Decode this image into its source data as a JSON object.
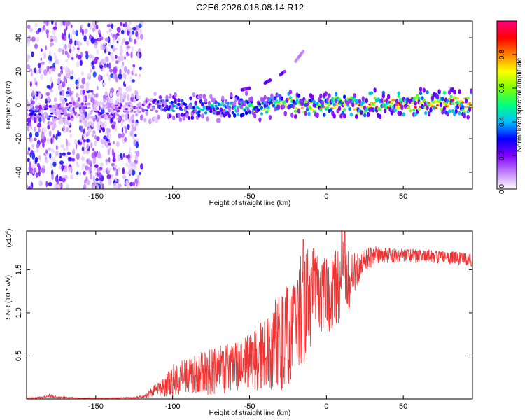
{
  "chart_data": [
    {
      "type": "heatmap",
      "title": "C2E6.2026.018.08.14.R12",
      "xlabel": "Height of straight line (km)",
      "ylabel": "Frequency (Hz)",
      "xlim": [
        -195,
        95
      ],
      "ylim": [
        -50,
        50
      ],
      "xticks": [
        -150,
        -100,
        -50,
        0,
        50
      ],
      "yticks": [
        -40,
        -20,
        0,
        20,
        40
      ],
      "xtick_labels": [
        "-150",
        "-100",
        "-50",
        "0",
        "50"
      ],
      "ytick_labels": [
        "-40",
        "-20",
        "0",
        "20",
        "40"
      ],
      "colorbar": {
        "label": "Normalized spectral amplitude",
        "range": [
          0.0,
          1.0
        ],
        "ticks": [
          0.0,
          0.2,
          0.4,
          0.6,
          0.8
        ],
        "tick_labels": [
          "0.0",
          "0.2",
          "0.4",
          "0.6",
          "0.8"
        ],
        "colors": [
          "#ffffff",
          "#c080ff",
          "#8000ff",
          "#0000ff",
          "#00c0ff",
          "#00ff80",
          "#80ff00",
          "#ffff00",
          "#ff8000",
          "#ff0000",
          "#ff0080"
        ]
      },
      "noise_region_x": [
        -195,
        -120
      ],
      "trace": {
        "x": [
          -193,
          -185,
          -175,
          -165,
          -150,
          -135,
          -120,
          -110,
          -100,
          -90,
          -80,
          -70,
          -60,
          -50,
          -45,
          -40,
          -35,
          -30,
          -25,
          -20,
          -15,
          -10,
          0,
          10,
          20,
          30,
          40,
          50,
          60,
          70,
          80,
          95
        ],
        "y": [
          -5,
          -4,
          -5,
          -4,
          -4,
          -4,
          -3,
          0,
          -1,
          -2,
          0,
          -1,
          -2,
          0,
          -1,
          -1,
          0,
          3,
          1,
          1,
          -2,
          -1,
          0,
          0,
          0,
          1,
          1,
          1,
          1,
          1,
          1,
          1
        ],
        "amplitude": [
          0.35,
          0.4,
          0.3,
          0.3,
          0.25,
          0.25,
          0.3,
          0.45,
          0.5,
          0.5,
          0.55,
          0.5,
          0.6,
          0.65,
          0.7,
          0.7,
          0.7,
          0.75,
          0.8,
          0.85,
          0.85,
          0.8,
          0.85,
          0.85,
          0.9,
          0.95,
          0.95,
          0.97,
          0.97,
          0.97,
          0.97,
          0.97
        ]
      },
      "side_features": [
        {
          "x": [
            -55,
            -50
          ],
          "y": [
            9,
            10
          ],
          "amplitude": 0.2
        },
        {
          "x": [
            -40,
            -36
          ],
          "y": [
            13,
            15
          ],
          "amplitude": 0.25
        },
        {
          "x": [
            -30,
            -27
          ],
          "y": [
            18,
            20
          ],
          "amplitude": 0.2
        },
        {
          "x": [
            -20,
            -15
          ],
          "y": [
            26,
            32
          ],
          "amplitude": 0.1
        }
      ]
    },
    {
      "type": "line",
      "title": "",
      "xlabel": "Height of straight line (km)",
      "ylabel": "SNR (10 * v/v)",
      "multiplier_label": "(x10",
      "multiplier_exponent": "4",
      "multiplier_close": ")",
      "xlim": [
        -195,
        95
      ],
      "ylim": [
        0,
        19500
      ],
      "xticks": [
        -150,
        -100,
        -50,
        0,
        50
      ],
      "yticks": [
        5000,
        10000,
        15000
      ],
      "xtick_labels": [
        "-150",
        "-100",
        "-50",
        "0",
        "50"
      ],
      "ytick_labels": [
        "0.5",
        "1.0",
        "1.5"
      ],
      "color": "#ee3333",
      "series": [
        {
          "name": "SNR",
          "x": [
            -195,
            -185,
            -180,
            -175,
            -160,
            -140,
            -125,
            -118,
            -112,
            -105,
            -100,
            -90,
            -80,
            -70,
            -60,
            -50,
            -45,
            -40,
            -35,
            -30,
            -25,
            -20,
            -15,
            -10,
            -5,
            0,
            5,
            10,
            12,
            15,
            20,
            25,
            30,
            35,
            40,
            50,
            60,
            70,
            80,
            95
          ],
          "values": [
            100,
            150,
            400,
            200,
            100,
            100,
            150,
            300,
            900,
            1500,
            2200,
            2600,
            3000,
            3300,
            3800,
            4200,
            4600,
            5200,
            6000,
            6800,
            7800,
            9000,
            10500,
            11800,
            12200,
            12000,
            12500,
            13500,
            12500,
            14000,
            15000,
            16000,
            16500,
            16800,
            16700,
            16600,
            16600,
            16500,
            16400,
            16200
          ],
          "amplitude": [
            50,
            100,
            250,
            100,
            50,
            50,
            80,
            200,
            700,
            1200,
            1800,
            2200,
            2600,
            2800,
            3000,
            3300,
            3800,
            4200,
            5000,
            5800,
            6500,
            7000,
            6500,
            6000,
            5000,
            4500,
            4500,
            5000,
            5500,
            3500,
            2200,
            1500,
            1200,
            1000,
            900,
            800,
            800,
            800,
            800,
            800
          ],
          "peaks": [
            {
              "x": -15,
              "value": 18500
            },
            {
              "x": 10,
              "value": 19500
            },
            {
              "x": 12,
              "value": 19400
            },
            {
              "x": -10,
              "value": 15000
            }
          ]
        }
      ]
    }
  ]
}
